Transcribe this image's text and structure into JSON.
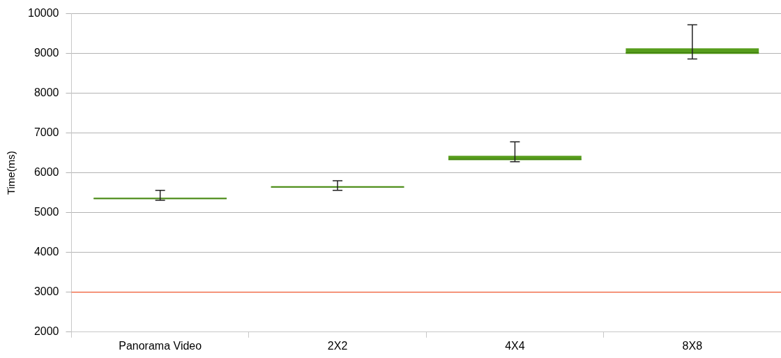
{
  "chart_data": {
    "type": "box",
    "ylabel": "Time(ms)",
    "categories": [
      "Panorama Video",
      "2X2",
      "4X4",
      "8X8"
    ],
    "boxes": [
      {
        "low": 5310,
        "q1": 5340,
        "median": 5350,
        "q3": 5370,
        "high": 5560
      },
      {
        "low": 5560,
        "q1": 5630,
        "median": 5640,
        "q3": 5660,
        "high": 5800
      },
      {
        "low": 6280,
        "q1": 6320,
        "median": 6340,
        "q3": 6430,
        "high": 6780
      },
      {
        "low": 8860,
        "q1": 8990,
        "median": 9020,
        "q3": 9130,
        "high": 9720
      }
    ],
    "colors": [
      "#579d1c",
      "#579d1c",
      "#579d1c",
      "#579d1c"
    ],
    "ylim": [
      2000,
      10000
    ],
    "yticks": [
      2000,
      3000,
      4000,
      5000,
      6000,
      7000,
      8000,
      9000,
      10000
    ],
    "grid": "y",
    "legend": false,
    "ref_lines": [
      {
        "axis": "y",
        "value": 3000,
        "color": "#ff420e"
      }
    ]
  }
}
